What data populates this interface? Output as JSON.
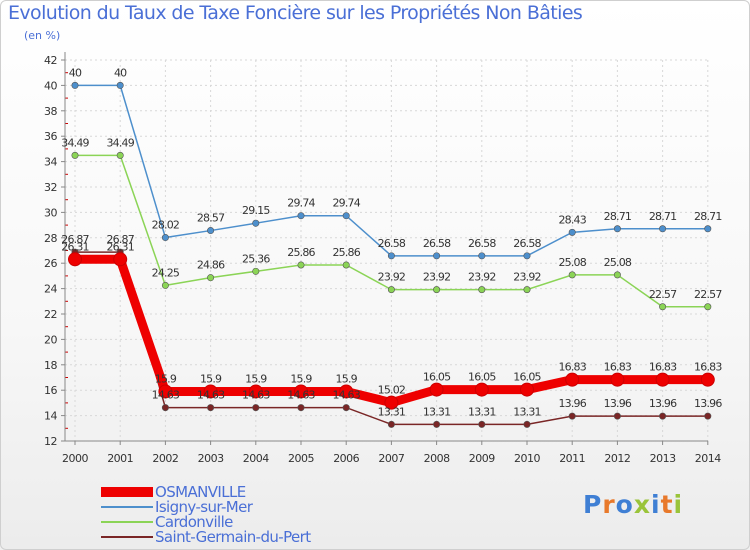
{
  "header": {
    "title": "Evolution du Taux de Taxe Foncière sur les Propriétés Non Bâties",
    "unit": "(en %)"
  },
  "logo": {
    "text": "Proxiti",
    "colors": [
      "#3f7fd4",
      "#e8792b",
      "#3f7fd4",
      "#9ac43a",
      "#3f7fd4",
      "#e8792b",
      "#9ac43a"
    ]
  },
  "chart_data": {
    "type": "line",
    "title": "Evolution du Taux de Taxe Foncière sur les Propriétés Non Bâties",
    "ylabel": "(en %)",
    "xlabel": "",
    "ylim": [
      12,
      42
    ],
    "yticks": [
      12,
      14,
      16,
      18,
      20,
      22,
      24,
      26,
      28,
      30,
      32,
      34,
      36,
      38,
      40,
      42
    ],
    "x": [
      "2000",
      "2001",
      "2002",
      "2003",
      "2004",
      "2005",
      "2006",
      "2007",
      "2008",
      "2009",
      "2010",
      "2011",
      "2012",
      "2013",
      "2014"
    ],
    "legend_position": "bottom-left",
    "series": [
      {
        "name": "Isigny-sur-Mer",
        "color": "#4d8fcc",
        "values": [
          40,
          40,
          28.02,
          28.57,
          29.15,
          29.74,
          29.74,
          26.58,
          26.58,
          26.58,
          26.58,
          28.43,
          28.71,
          28.71,
          28.71
        ]
      },
      {
        "name": "Cardonville",
        "color": "#8bd456",
        "values": [
          34.49,
          34.49,
          24.25,
          24.86,
          25.36,
          25.86,
          25.86,
          23.92,
          23.92,
          23.92,
          23.92,
          25.08,
          25.08,
          22.57,
          22.57
        ]
      },
      {
        "name": "Saint-Germain-du-Pert",
        "color": "#7a2626",
        "values": [
          26.87,
          26.87,
          14.63,
          14.63,
          14.63,
          14.63,
          14.63,
          13.31,
          13.31,
          13.31,
          13.31,
          13.96,
          13.96,
          13.96,
          13.96
        ]
      },
      {
        "name": "OSMANVILLE",
        "color": "#ee0000",
        "values": [
          26.31,
          26.31,
          15.9,
          15.9,
          15.9,
          15.9,
          15.9,
          15.02,
          16.05,
          16.05,
          16.05,
          16.83,
          16.83,
          16.83,
          16.83
        ]
      }
    ],
    "legend_order": [
      "OSMANVILLE",
      "Isigny-sur-Mer",
      "Cardonville",
      "Saint-Germain-du-Pert"
    ]
  }
}
